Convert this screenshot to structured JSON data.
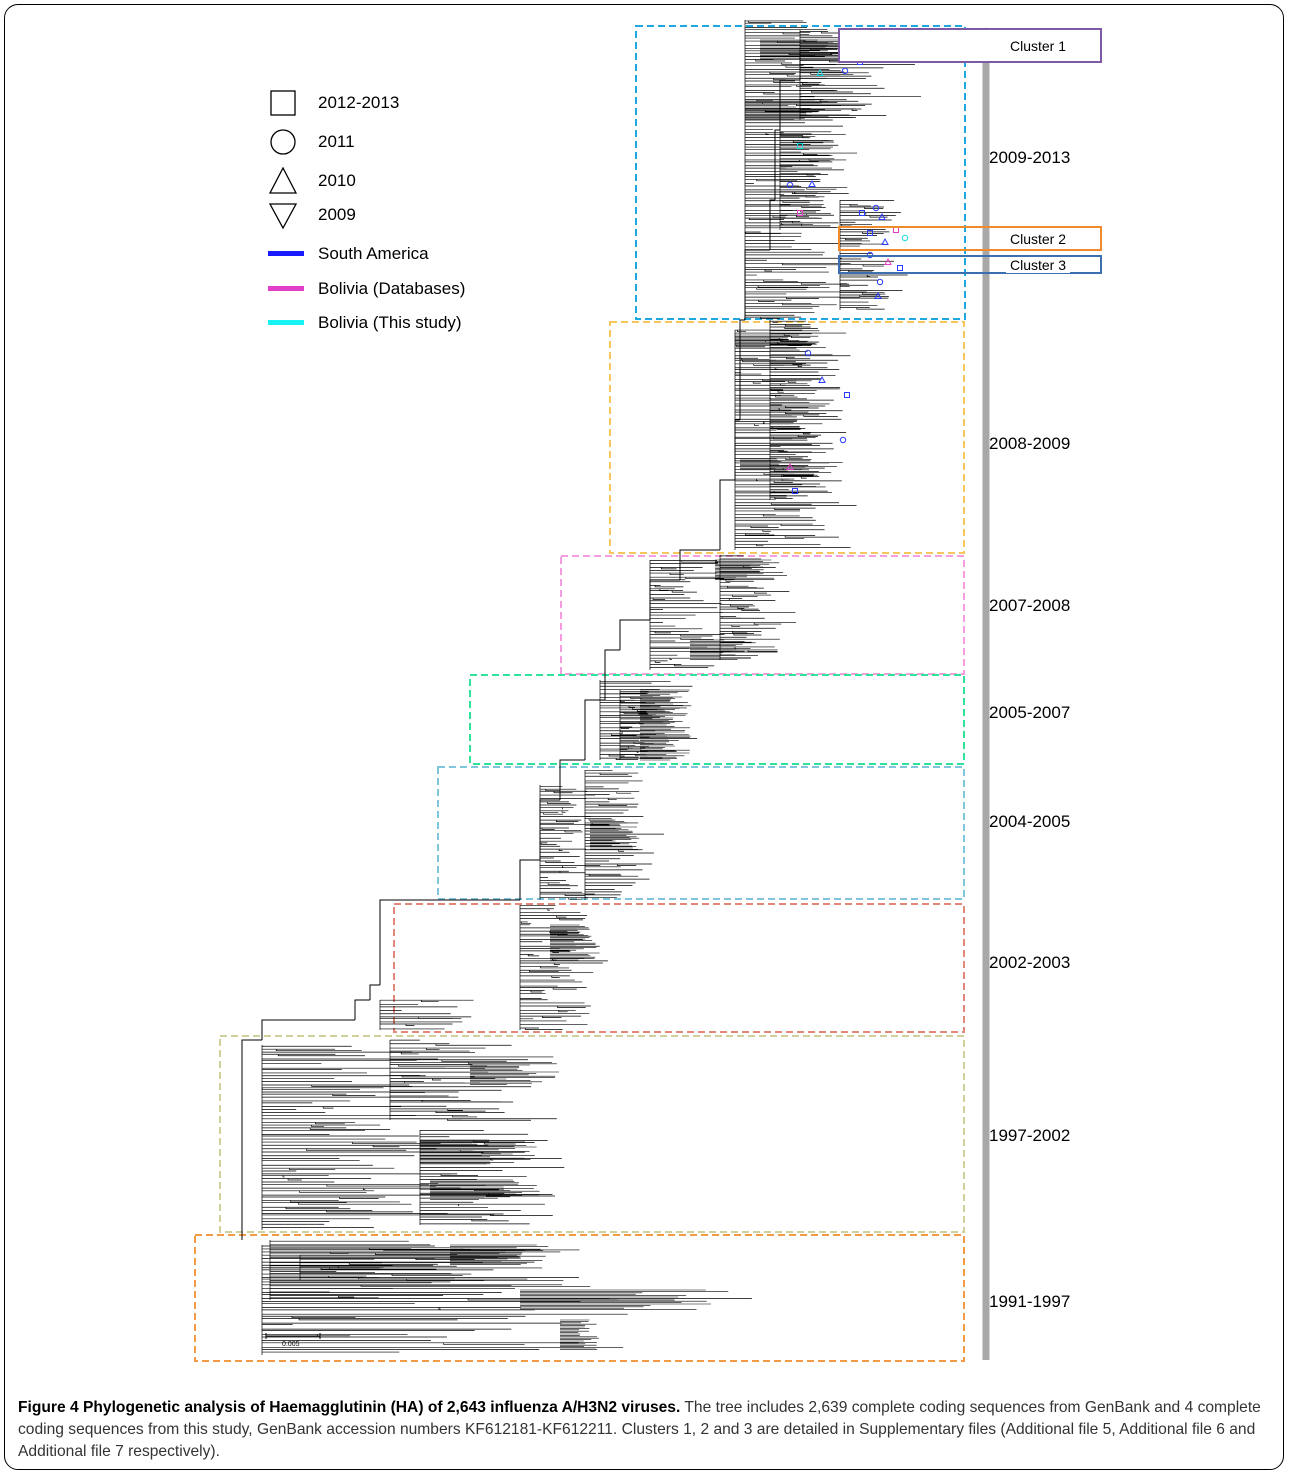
{
  "legend": {
    "years": [
      {
        "shape": "square",
        "label": "2012-2013"
      },
      {
        "shape": "circle",
        "label": "2011"
      },
      {
        "shape": "triangle-up",
        "label": "2010"
      },
      {
        "shape": "triangle-down",
        "label": "2009"
      }
    ],
    "regions": [
      {
        "color": "#1a1aff",
        "label": "South America"
      },
      {
        "color": "#e23fc9",
        "label": "Bolivia (Databases)"
      },
      {
        "color": "#19f2f2",
        "label": "Bolivia (This study)"
      }
    ]
  },
  "periods": [
    {
      "label": "2009-2013",
      "color": "#1fa8e0"
    },
    {
      "label": "2008-2009",
      "color": "#f5c65b"
    },
    {
      "label": "2007-2008",
      "color": "#f69ce0"
    },
    {
      "label": "2005-2007",
      "color": "#2fe39a"
    },
    {
      "label": "2004-2005",
      "color": "#7fc6dd"
    },
    {
      "label": "2002-2003",
      "color": "#e3877a"
    },
    {
      "label": "1997-2002",
      "color": "#cfd09b"
    },
    {
      "label": "1991-1997",
      "color": "#f39a45"
    }
  ],
  "clusters": [
    {
      "label": "Cluster 1",
      "color": "#7e5aa6"
    },
    {
      "label": "Cluster 2",
      "color": "#f08b2c"
    },
    {
      "label": "Cluster 3",
      "color": "#3b6fb0"
    }
  ],
  "scale_bar": {
    "label": "0.005"
  },
  "caption": {
    "title": "Figure 4 Phylogenetic analysis of Haemagglutinin (HA) of 2,643 influenza A/H3N2 viruses.",
    "body": "The tree includes 2,639 complete coding sequences from GenBank and 4 complete coding sequences from this study, GenBank accession numbers KF612181-KF612211. Clusters 1, 2 and 3 are detailed in Supplementary files (Additional file 5, Additional file 6 and Additional file 7 respectively)."
  },
  "colors": {
    "time_arrow": "#a8a8a8",
    "branch": "#000000"
  }
}
